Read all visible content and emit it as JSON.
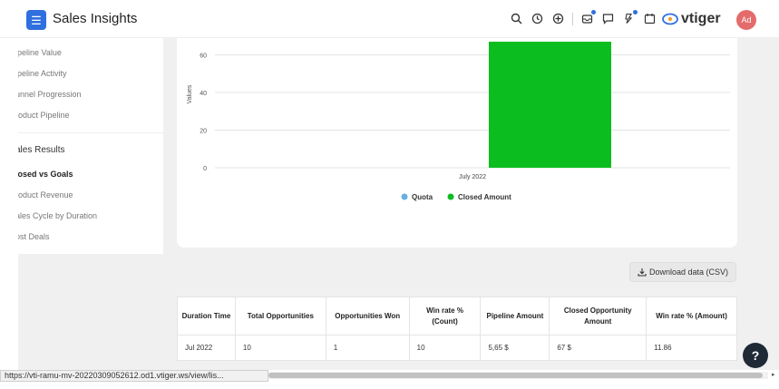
{
  "header": {
    "app_title": "Sales Insights",
    "brand": "vtiger",
    "avatar_initials": "Ad",
    "menu_icon": "hamburger-icon",
    "icons": [
      "search-icon",
      "history-icon",
      "add-icon",
      "inbox-icon",
      "chat-icon",
      "announcement-icon",
      "calendar-icon"
    ]
  },
  "sidebar": {
    "items_top": [
      {
        "label": "ipeline Value"
      },
      {
        "label": "ipeline Activity"
      },
      {
        "label": "unnel Progression"
      },
      {
        "label": "roduct Pipeline"
      }
    ],
    "section_title": "ales Results",
    "items_bottom": [
      {
        "label": "losed vs Goals",
        "active": true
      },
      {
        "label": "roduct Revenue"
      },
      {
        "label": "ales Cycle by Duration"
      },
      {
        "label": "ost Deals"
      }
    ]
  },
  "chart_data": {
    "type": "bar",
    "categories": [
      "July 2022"
    ],
    "series": [
      {
        "name": "Quota",
        "values": [
          0
        ],
        "color": "#6aaee0"
      },
      {
        "name": "Closed Amount",
        "values": [
          67
        ],
        "color": "#0bbd1f"
      }
    ],
    "ylabel": "Values",
    "yticks": [
      0,
      20,
      40,
      60
    ],
    "ylim": [
      0,
      67
    ],
    "grid": true,
    "legend_position": "bottom"
  },
  "download_button": {
    "label": "Download data (CSV)",
    "icon": "download-icon"
  },
  "table": {
    "headers": [
      "Duration Time",
      "Total Opportunities",
      "Opportunities Won",
      "Win rate % (Count)",
      "Pipeline Amount",
      "Closed Opportunity Amount",
      "Win rate % (Amount)"
    ],
    "rows": [
      [
        "Jul 2022",
        "10",
        "1",
        "10",
        "5,65 $",
        "67 $",
        "11.86"
      ]
    ]
  },
  "help_button": {
    "label": "?"
  },
  "status_bar": {
    "url": "https://vti-ramu-mv-20220309052612.od1.vtiger.ws/view/lis..."
  }
}
